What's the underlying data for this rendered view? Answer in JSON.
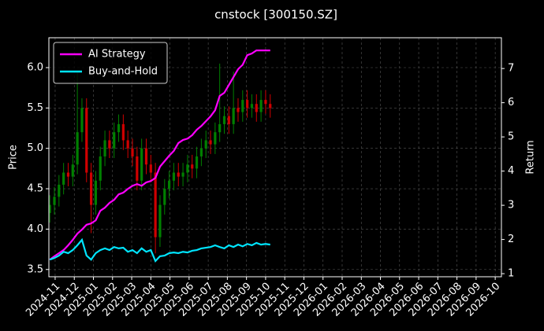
{
  "chart_data": {
    "type": "candlestick",
    "title": "cnstock [300150.SZ]",
    "ylabel": "Price",
    "y2label": "Return",
    "up_color": "#008000",
    "down_color": "#d00000",
    "grid": true,
    "legend": "upper left",
    "x": [
      2024.81,
      2024.83,
      2024.85,
      2024.87,
      2024.89,
      2024.91,
      2024.93,
      2024.95,
      2024.97,
      2024.99,
      2025.01,
      2025.03,
      2025.05,
      2025.07,
      2025.09,
      2025.11,
      2025.13,
      2025.15,
      2025.17,
      2025.19,
      2025.21,
      2025.23,
      2025.25,
      2025.27,
      2025.29,
      2025.31,
      2025.33,
      2025.35,
      2025.37,
      2025.39,
      2025.41,
      2025.43,
      2025.45,
      2025.47,
      2025.49,
      2025.51,
      2025.53,
      2025.55,
      2025.57,
      2025.59,
      2025.61,
      2025.63,
      2025.65,
      2025.67,
      2025.69,
      2025.71,
      2025.73,
      2025.75,
      2025.77
    ],
    "open": [
      4.2,
      4.3,
      4.4,
      4.55,
      4.7,
      4.65,
      4.8,
      5.2,
      5.5,
      4.7,
      4.3,
      4.6,
      4.9,
      5.1,
      5.0,
      5.2,
      5.3,
      5.1,
      5.0,
      4.9,
      4.6,
      5.0,
      4.8,
      4.7,
      3.9,
      4.3,
      4.5,
      4.6,
      4.7,
      4.65,
      4.7,
      4.8,
      4.75,
      4.9,
      5.0,
      5.1,
      5.05,
      5.2,
      5.3,
      5.4,
      5.3,
      5.5,
      5.45,
      5.6,
      5.5,
      5.55,
      5.45,
      5.6,
      5.55
    ],
    "high": [
      4.42,
      4.52,
      4.67,
      4.82,
      4.82,
      4.92,
      5.95,
      5.62,
      5.62,
      4.82,
      4.72,
      5.02,
      5.22,
      5.22,
      5.32,
      5.42,
      5.42,
      5.22,
      5.12,
      5.02,
      5.12,
      5.12,
      4.92,
      4.82,
      4.42,
      4.62,
      4.72,
      4.82,
      4.82,
      4.82,
      4.92,
      4.92,
      5.02,
      5.12,
      5.22,
      5.22,
      5.32,
      6.05,
      5.52,
      5.52,
      5.95,
      5.62,
      5.72,
      5.72,
      5.67,
      5.67,
      5.72,
      5.72,
      5.67
    ],
    "low": [
      4.08,
      4.18,
      4.28,
      4.43,
      4.53,
      4.53,
      4.68,
      5.08,
      4.58,
      3.95,
      4.18,
      4.48,
      4.78,
      4.88,
      4.88,
      5.08,
      4.98,
      4.88,
      4.78,
      4.48,
      4.48,
      4.68,
      4.58,
      3.7,
      3.78,
      4.18,
      4.38,
      4.48,
      4.53,
      4.53,
      4.58,
      4.63,
      4.63,
      4.78,
      4.88,
      4.93,
      4.93,
      5.08,
      5.18,
      5.18,
      5.18,
      5.33,
      5.33,
      5.38,
      5.38,
      5.33,
      5.33,
      5.43,
      5.38
    ],
    "close": [
      4.3,
      4.4,
      4.55,
      4.7,
      4.65,
      4.8,
      5.2,
      5.5,
      4.7,
      4.3,
      4.6,
      4.9,
      5.1,
      5.0,
      5.2,
      5.3,
      5.1,
      5.0,
      4.9,
      4.6,
      5.0,
      4.8,
      4.7,
      3.9,
      4.3,
      4.5,
      4.6,
      4.7,
      4.65,
      4.7,
      4.8,
      4.75,
      4.9,
      5.0,
      5.1,
      5.05,
      5.2,
      5.3,
      5.4,
      5.3,
      5.5,
      5.45,
      5.6,
      5.5,
      5.55,
      5.45,
      5.6,
      5.55,
      5.5
    ],
    "series": [
      {
        "name": "AI Strategy",
        "color": "#ff00ff",
        "axis": "y2",
        "values": [
          1.41,
          1.51,
          1.6,
          1.69,
          1.83,
          1.99,
          2.17,
          2.29,
          2.43,
          2.47,
          2.56,
          2.84,
          2.93,
          3.07,
          3.16,
          3.32,
          3.37,
          3.48,
          3.57,
          3.62,
          3.57,
          3.67,
          3.71,
          3.8,
          4.13,
          4.29,
          4.45,
          4.59,
          4.82,
          4.91,
          4.95,
          5.05,
          5.21,
          5.32,
          5.46,
          5.6,
          5.78,
          6.2,
          6.29,
          6.52,
          6.75,
          6.98,
          7.11,
          7.39,
          7.44,
          7.53,
          7.53,
          7.53,
          7.53
        ]
      },
      {
        "name": "Buy-and-Hold",
        "color": "#00e5ff",
        "axis": "y2",
        "values": [
          1.41,
          1.46,
          1.53,
          1.64,
          1.6,
          1.69,
          1.83,
          1.99,
          1.53,
          1.41,
          1.6,
          1.69,
          1.74,
          1.69,
          1.78,
          1.74,
          1.76,
          1.64,
          1.69,
          1.6,
          1.74,
          1.64,
          1.69,
          1.37,
          1.51,
          1.53,
          1.6,
          1.62,
          1.6,
          1.64,
          1.62,
          1.67,
          1.69,
          1.74,
          1.76,
          1.78,
          1.83,
          1.78,
          1.74,
          1.83,
          1.78,
          1.85,
          1.8,
          1.87,
          1.83,
          1.9,
          1.85,
          1.87,
          1.85
        ]
      }
    ],
    "xlim": [
      2024.806,
      2026.777
    ],
    "xticks": [
      {
        "value": 2024.8333,
        "label": "2024-11"
      },
      {
        "value": 2024.9167,
        "label": "2024-12"
      },
      {
        "value": 2025,
        "label": "2025-01"
      },
      {
        "value": 2025.0833,
        "label": "2025-02"
      },
      {
        "value": 2025.1667,
        "label": "2025-03"
      },
      {
        "value": 2025.25,
        "label": "2025-04"
      },
      {
        "value": 2025.3333,
        "label": "2025-05"
      },
      {
        "value": 2025.4167,
        "label": "2025-06"
      },
      {
        "value": 2025.5,
        "label": "2025-07"
      },
      {
        "value": 2025.5833,
        "label": "2025-08"
      },
      {
        "value": 2025.6667,
        "label": "2025-09"
      },
      {
        "value": 2025.75,
        "label": "2025-10"
      },
      {
        "value": 2025.8333,
        "label": "2025-11"
      },
      {
        "value": 2025.9167,
        "label": "2025-12"
      },
      {
        "value": 2026,
        "label": "2026-01"
      },
      {
        "value": 2026.0833,
        "label": "2026-02"
      },
      {
        "value": 2026.1667,
        "label": "2026-03"
      },
      {
        "value": 2026.25,
        "label": "2026-04"
      },
      {
        "value": 2026.3333,
        "label": "2026-05"
      },
      {
        "value": 2026.4167,
        "label": "2026-06"
      },
      {
        "value": 2026.5,
        "label": "2026-07"
      },
      {
        "value": 2026.5833,
        "label": "2026-08"
      },
      {
        "value": 2026.6667,
        "label": "2026-09"
      },
      {
        "value": 2026.75,
        "label": "2026-10"
      }
    ],
    "ylim": [
      3.41,
      6.37
    ],
    "yticks": [
      3.5,
      {
        "value": 4,
        "label": "4.0"
      },
      4.5,
      {
        "value": 5,
        "label": "5.0"
      },
      5.5,
      {
        "value": 6,
        "label": "6.0"
      }
    ],
    "y2lim": [
      0.91,
      7.9
    ],
    "y2ticks": [
      1,
      2,
      3,
      4,
      5,
      6,
      7
    ]
  }
}
